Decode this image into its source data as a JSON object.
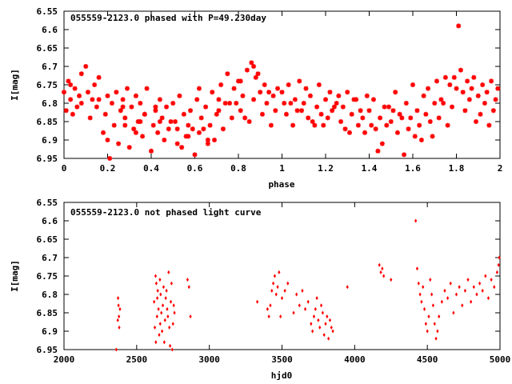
{
  "colors": {
    "points": "#ff0000",
    "axis": "#000000",
    "background": "#ffffff"
  },
  "chart_data": [
    {
      "type": "scatter",
      "title": "055559-2123.0 phased with P=49.230day",
      "xlabel": "phase",
      "ylabel": "I[mag]",
      "xlim": [
        0,
        2
      ],
      "ylim": [
        6.95,
        6.55
      ],
      "y_inverted": true,
      "x_ticks": [
        0,
        0.2,
        0.4,
        0.6,
        0.8,
        1,
        1.2,
        1.4,
        1.6,
        1.8,
        2
      ],
      "x_tick_labels": [
        "0",
        "0.2",
        "0.4",
        "0.6",
        "0.8",
        "1",
        "1.2",
        "1.4",
        "1.6",
        "1.8",
        "2"
      ],
      "y_ticks": [
        6.55,
        6.6,
        6.65,
        6.7,
        6.75,
        6.8,
        6.85,
        6.9,
        6.95
      ],
      "y_tick_labels": [
        "6.55",
        "6.6",
        "6.65",
        "6.7",
        "6.75",
        "6.8",
        "6.85",
        "6.9",
        "6.95"
      ],
      "marker": "asterisk",
      "series": [
        {
          "x": [
            0.0,
            0.01,
            0.02,
            0.03,
            0.03,
            0.04,
            0.05,
            0.06,
            0.07,
            0.08,
            0.1,
            0.11,
            0.12,
            0.13,
            0.14,
            0.15,
            0.16,
            0.18,
            0.19,
            0.2,
            0.21,
            0.22,
            0.23,
            0.24,
            0.25,
            0.26,
            0.27,
            0.28,
            0.29,
            0.3,
            0.31,
            0.32,
            0.33,
            0.34,
            0.35,
            0.36,
            0.37,
            0.38,
            0.4,
            0.41,
            0.42,
            0.43,
            0.44,
            0.45,
            0.46,
            0.47,
            0.48,
            0.5,
            0.51,
            0.52,
            0.53,
            0.55,
            0.56,
            0.57,
            0.58,
            0.6,
            0.61,
            0.62,
            0.63,
            0.65,
            0.66,
            0.67,
            0.68,
            0.7,
            0.71,
            0.72,
            0.73,
            0.75,
            0.76,
            0.77,
            0.78,
            0.8,
            0.81,
            0.82,
            0.84,
            0.85,
            0.86,
            0.87,
            0.88,
            0.9,
            0.91,
            0.92,
            0.93,
            0.95,
            0.96,
            0.97,
            0.98,
            0.08,
            0.16,
            0.27,
            0.37,
            0.49,
            0.59,
            0.69,
            0.79,
            0.83,
            0.89,
            0.94,
            0.2,
            0.33,
            0.44,
            0.54,
            0.64,
            0.74,
            0.62,
            0.35,
            0.42,
            0.66,
            0.28,
            0.57,
            0.81,
            0.87,
            0.71,
            0.52
          ],
          "y": [
            6.77,
            6.82,
            6.74,
            6.79,
            6.75,
            6.83,
            6.76,
            6.81,
            6.78,
            6.72,
            6.7,
            6.77,
            6.84,
            6.79,
            6.75,
            6.81,
            6.73,
            6.88,
            6.83,
            6.78,
            6.95,
            6.8,
            6.86,
            6.77,
            6.91,
            6.82,
            6.79,
            6.84,
            6.76,
            6.92,
            6.81,
            6.87,
            6.78,
            6.85,
            6.8,
            6.89,
            6.83,
            6.76,
            6.93,
            6.86,
            6.82,
            6.88,
            6.79,
            6.84,
            6.9,
            6.81,
            6.87,
            6.8,
            6.85,
            6.91,
            6.78,
            6.83,
            6.89,
            6.86,
            6.82,
            6.94,
            6.79,
            6.88,
            6.84,
            6.81,
            6.9,
            6.86,
            6.77,
            6.83,
            6.79,
            6.75,
            6.87,
            6.72,
            6.8,
            6.84,
            6.76,
            6.74,
            6.82,
            6.78,
            6.71,
            6.85,
            6.69,
            6.79,
            6.73,
            6.77,
            6.83,
            6.75,
            6.8,
            6.86,
            6.78,
            6.82,
            6.76,
            6.8,
            6.79,
            6.81,
            6.83,
            6.85,
            6.87,
            6.9,
            6.8,
            6.84,
            6.72,
            6.77,
            6.9,
            6.88,
            6.85,
            6.92,
            6.87,
            6.8,
            6.76,
            6.85,
            6.81,
            6.91,
            6.86,
            6.89,
            6.74,
            6.7,
            6.82,
            6.87
          ]
        },
        {
          "x": [
            1.0,
            1.01,
            1.02,
            1.03,
            1.05,
            1.06,
            1.07,
            1.08,
            1.1,
            1.11,
            1.12,
            1.13,
            1.15,
            1.16,
            1.17,
            1.18,
            1.2,
            1.21,
            1.22,
            1.23,
            1.25,
            1.26,
            1.27,
            1.28,
            1.3,
            1.31,
            1.32,
            1.33,
            1.35,
            1.36,
            1.37,
            1.38,
            1.4,
            1.41,
            1.42,
            1.43,
            1.45,
            1.46,
            1.47,
            1.48,
            1.5,
            1.51,
            1.52,
            1.53,
            1.55,
            1.56,
            1.57,
            1.58,
            1.6,
            1.61,
            1.62,
            1.63,
            1.65,
            1.66,
            1.67,
            1.68,
            1.7,
            1.71,
            1.72,
            1.73,
            1.75,
            1.76,
            1.77,
            1.78,
            1.8,
            1.81,
            1.82,
            1.83,
            1.84,
            1.85,
            1.86,
            1.87,
            1.88,
            1.89,
            1.9,
            1.91,
            1.92,
            1.93,
            1.94,
            1.95,
            1.96,
            1.97,
            1.98,
            1.99,
            1.04,
            1.14,
            1.24,
            1.34,
            1.44,
            1.54,
            1.64,
            1.74,
            1.79,
            1.09,
            1.19,
            1.29,
            1.39,
            1.49,
            1.59,
            1.69
          ],
          "y": [
            6.77,
            6.8,
            6.83,
            6.75,
            6.86,
            6.79,
            6.82,
            6.74,
            6.8,
            6.76,
            6.84,
            6.78,
            6.86,
            6.81,
            6.75,
            6.83,
            6.79,
            6.84,
            6.77,
            6.82,
            6.8,
            6.78,
            6.85,
            6.81,
            6.77,
            6.88,
            6.83,
            6.79,
            6.86,
            6.82,
            6.84,
            6.88,
            6.82,
            6.86,
            6.79,
            6.87,
            6.84,
            6.91,
            6.81,
            6.86,
            6.85,
            6.82,
            6.77,
            6.88,
            6.84,
            6.94,
            6.8,
            6.87,
            6.75,
            6.89,
            6.82,
            6.86,
            6.78,
            6.83,
            6.76,
            6.85,
            6.8,
            6.74,
            6.84,
            6.79,
            6.73,
            6.86,
            6.75,
            6.81,
            6.76,
            6.59,
            6.71,
            6.77,
            6.82,
            6.74,
            6.79,
            6.76,
            6.73,
            6.85,
            6.78,
            6.83,
            6.75,
            6.8,
            6.77,
            6.86,
            6.74,
            6.82,
            6.79,
            6.76,
            6.8,
            6.85,
            6.81,
            6.79,
            6.93,
            6.83,
            6.9,
            6.8,
            6.73,
            6.82,
            6.86,
            6.87,
            6.78,
            6.81,
            6.84,
            6.89
          ]
        }
      ]
    },
    {
      "type": "scatter",
      "title": "055559-2123.0 not phased light curve",
      "xlabel": "hjd0",
      "ylabel": "I[mag]",
      "xlim": [
        2000,
        5000
      ],
      "ylim": [
        6.95,
        6.55
      ],
      "y_inverted": true,
      "x_ticks": [
        2000,
        2500,
        3000,
        3500,
        4000,
        4500,
        5000
      ],
      "x_tick_labels": [
        "2000",
        "2500",
        "3000",
        "3500",
        "4000",
        "4500",
        "5000"
      ],
      "y_ticks": [
        6.55,
        6.6,
        6.65,
        6.7,
        6.75,
        6.8,
        6.85,
        6.9,
        6.95
      ],
      "y_tick_labels": [
        "6.55",
        "6.6",
        "6.65",
        "6.7",
        "6.75",
        "6.8",
        "6.85",
        "6.9",
        "6.95"
      ],
      "marker": "diamond",
      "series": [
        {
          "x": [
            2360,
            2370,
            2372,
            2375,
            2378,
            2380,
            2385,
            2620,
            2625,
            2630,
            2632,
            2635,
            2640,
            2642,
            2645,
            2650,
            2655,
            2660,
            2662,
            2665,
            2670,
            2675,
            2680,
            2685,
            2690,
            2695,
            2700,
            2705,
            2710,
            2715,
            2720,
            2725,
            2730,
            2735,
            2740,
            2745,
            2750,
            2755,
            2760,
            2850,
            2860,
            2870,
            3330,
            3400,
            3410,
            3420,
            3430,
            3440,
            3450,
            3460,
            3470,
            3480,
            3490,
            3500,
            3520,
            3540,
            3580,
            3600,
            3620,
            3640,
            3660,
            3680,
            3700,
            3710,
            3720,
            3730,
            3740,
            3750,
            3760,
            3770,
            3780,
            3790,
            3800,
            3810,
            3820,
            3830,
            3840,
            3850,
            3950,
            4170,
            4180,
            4190,
            4200,
            4250,
            4420,
            4430,
            4440,
            4450,
            4460,
            4470,
            4480,
            4490,
            4500,
            4510,
            4520,
            4530,
            4540,
            4550,
            4560,
            4570,
            4580,
            4600,
            4620,
            4640,
            4660,
            4680,
            4700,
            4720,
            4740,
            4760,
            4780,
            4800,
            4820,
            4840,
            4860,
            4880,
            4900,
            4920,
            4940,
            4960,
            4980,
            4990,
            4995
          ],
          "y": [
            6.95,
            6.87,
            6.81,
            6.83,
            6.86,
            6.89,
            6.84,
            6.82,
            6.89,
            6.75,
            6.93,
            6.77,
            6.86,
            6.81,
            6.79,
            6.84,
            6.91,
            6.76,
            6.88,
            6.8,
            6.85,
            6.9,
            6.83,
            6.78,
            6.93,
            6.87,
            6.81,
            6.79,
            6.84,
            6.86,
            6.74,
            6.89,
            6.94,
            6.82,
            6.77,
            6.95,
            6.88,
            6.83,
            6.85,
            6.76,
            6.78,
            6.86,
            6.82,
            6.84,
            6.86,
            6.83,
            6.79,
            6.77,
            6.75,
            6.8,
            6.78,
            6.74,
            6.86,
            6.81,
            6.79,
            6.77,
            6.85,
            6.8,
            6.83,
            6.79,
            6.84,
            6.82,
            6.88,
            6.9,
            6.86,
            6.84,
            6.81,
            6.87,
            6.89,
            6.83,
            6.85,
            6.91,
            6.88,
            6.86,
            6.92,
            6.87,
            6.89,
            6.9,
            6.78,
            6.72,
            6.74,
            6.73,
            6.75,
            6.76,
            6.6,
            6.73,
            6.77,
            6.8,
            6.82,
            6.78,
            6.84,
            6.88,
            6.9,
            6.86,
            6.76,
            6.8,
            6.83,
            6.88,
            6.92,
            6.9,
            6.86,
            6.82,
            6.79,
            6.81,
            6.77,
            6.85,
            6.8,
            6.78,
            6.83,
            6.79,
            6.76,
            6.82,
            6.78,
            6.8,
            6.77,
            6.79,
            6.75,
            6.81,
            6.76,
            6.78,
            6.74,
            6.72,
            6.7
          ]
        }
      ]
    }
  ]
}
